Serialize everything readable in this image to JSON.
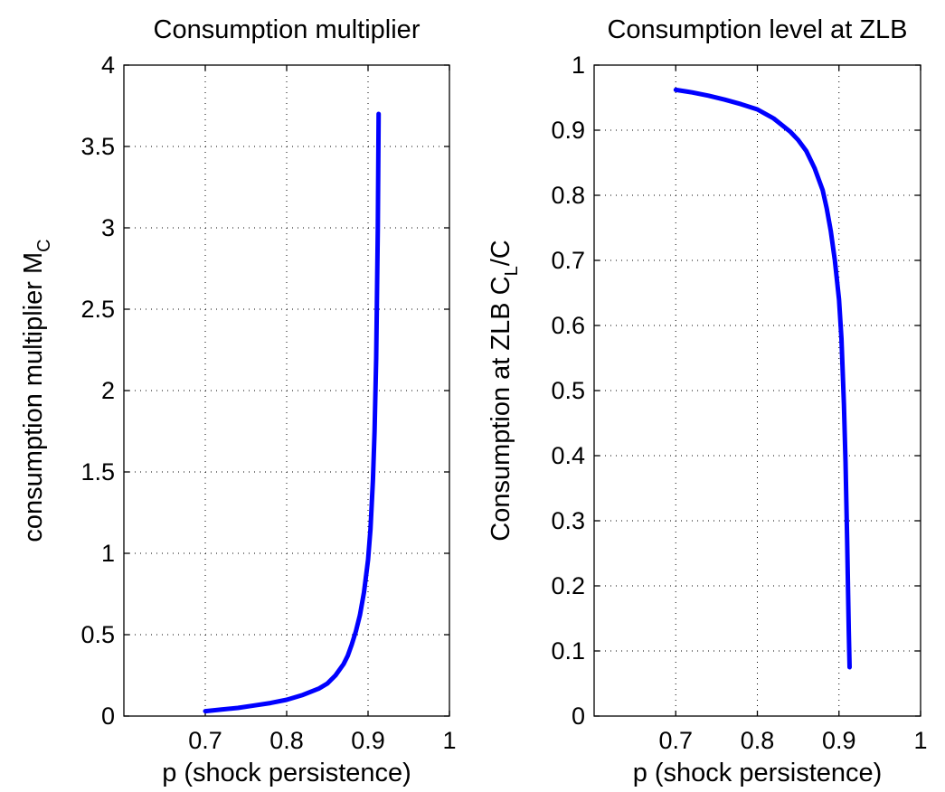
{
  "chart_data": [
    {
      "type": "line",
      "title": "Consumption multiplier",
      "xlabel": "p (shock persistence)",
      "ylabel": "consumption multiplier M",
      "ylabel_subscript": "C",
      "xlim": [
        0.6,
        1.0
      ],
      "ylim": [
        0,
        4
      ],
      "xticks": [
        0.7,
        0.8,
        0.9,
        1.0
      ],
      "xtick_labels": [
        "0.7",
        "0.8",
        "0.9",
        "1"
      ],
      "yticks": [
        0,
        0.5,
        1,
        1.5,
        2,
        2.5,
        3,
        3.5,
        4
      ],
      "ytick_labels": [
        "0",
        "0.5",
        "1",
        "1.5",
        "2",
        "2.5",
        "3",
        "3.5",
        "4"
      ],
      "grid": true,
      "color": "#0000ff",
      "series": [
        {
          "x": [
            0.7,
            0.72,
            0.74,
            0.76,
            0.78,
            0.8,
            0.82,
            0.84,
            0.85,
            0.86,
            0.87,
            0.875,
            0.88,
            0.885,
            0.89,
            0.895,
            0.9,
            0.903,
            0.906,
            0.908,
            0.91,
            0.912,
            0.913
          ],
          "y": [
            0.03,
            0.04,
            0.05,
            0.065,
            0.08,
            0.1,
            0.13,
            0.17,
            0.2,
            0.25,
            0.32,
            0.37,
            0.44,
            0.52,
            0.62,
            0.76,
            0.96,
            1.15,
            1.45,
            1.75,
            2.2,
            3.0,
            3.7
          ]
        }
      ]
    },
    {
      "type": "line",
      "title": "Consumption level at ZLB",
      "xlabel": "p (shock persistence)",
      "ylabel": "Consumption at ZLB C",
      "ylabel_subscript": "L",
      "ylabel_suffix": "/C",
      "xlim": [
        0.6,
        1.0
      ],
      "ylim": [
        0,
        1
      ],
      "xticks": [
        0.7,
        0.8,
        0.9,
        1.0
      ],
      "xtick_labels": [
        "0.7",
        "0.8",
        "0.9",
        "1"
      ],
      "yticks": [
        0,
        0.1,
        0.2,
        0.3,
        0.4,
        0.5,
        0.6,
        0.7,
        0.8,
        0.9,
        1
      ],
      "ytick_labels": [
        "0",
        "0.1",
        "0.2",
        "0.3",
        "0.4",
        "0.5",
        "0.6",
        "0.7",
        "0.8",
        "0.9",
        "1"
      ],
      "grid": true,
      "color": "#0000ff",
      "series": [
        {
          "x": [
            0.7,
            0.72,
            0.74,
            0.76,
            0.78,
            0.8,
            0.82,
            0.84,
            0.85,
            0.86,
            0.87,
            0.88,
            0.885,
            0.89,
            0.895,
            0.9,
            0.903,
            0.906,
            0.908,
            0.91,
            0.912,
            0.913
          ],
          "y": [
            0.962,
            0.958,
            0.953,
            0.947,
            0.94,
            0.932,
            0.918,
            0.898,
            0.885,
            0.868,
            0.842,
            0.808,
            0.78,
            0.745,
            0.7,
            0.64,
            0.58,
            0.48,
            0.39,
            0.27,
            0.13,
            0.075
          ]
        }
      ]
    }
  ]
}
